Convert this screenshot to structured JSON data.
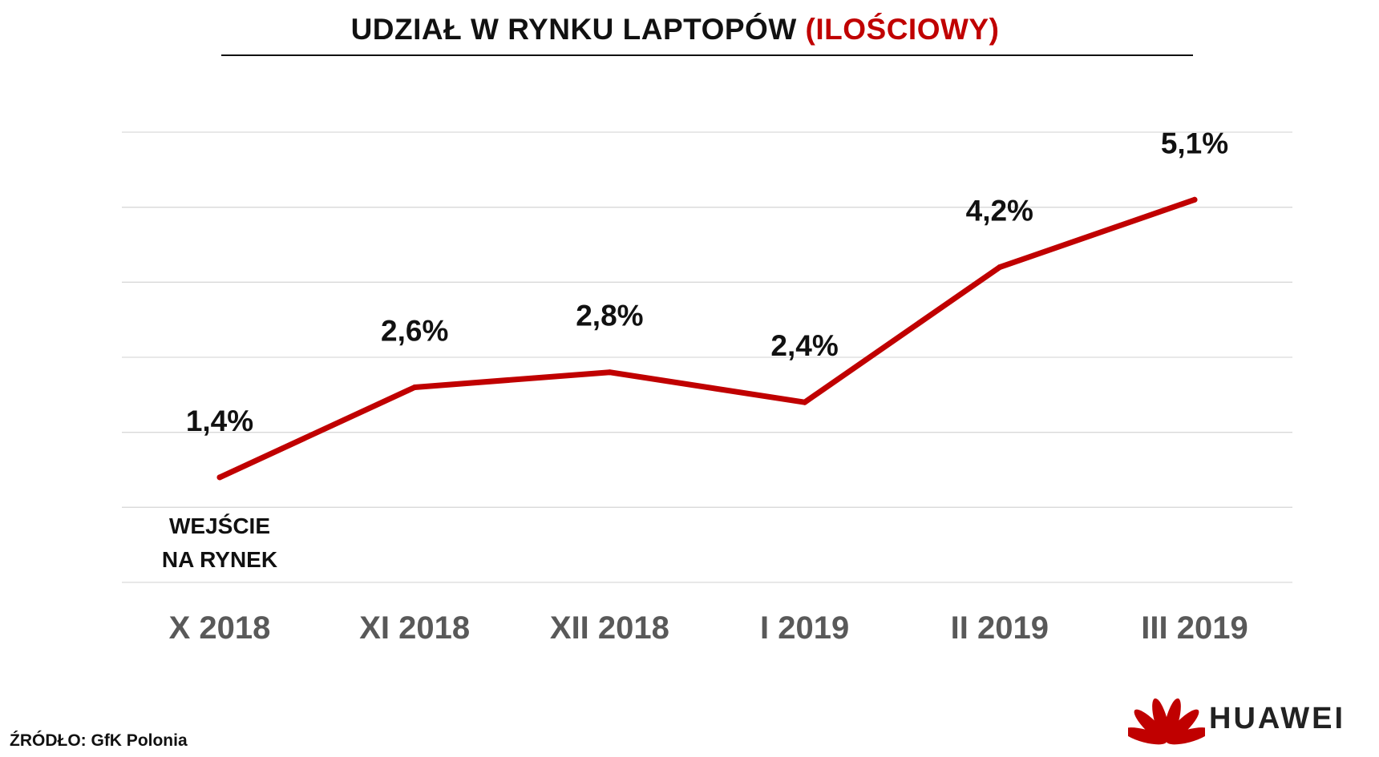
{
  "title": {
    "main": "UDZIAŁ W RYNKU LAPTOPÓW ",
    "accent": "(ILOŚCIOWY)"
  },
  "colors": {
    "accent": "#c00000",
    "line": "#c00000",
    "grid": "#d9d9d9",
    "tick_text": "#595959",
    "text": "#111111"
  },
  "chart_data": {
    "type": "line",
    "title": "UDZIAŁ W RYNKU LAPTOPÓW (ILOŚCIOWY)",
    "categories": [
      "X 2018",
      "XI 2018",
      "XII 2018",
      "I 2019",
      "II 2019",
      "III 2019"
    ],
    "series": [
      {
        "values": [
          1.4,
          2.6,
          2.8,
          2.4,
          4.2,
          5.1
        ],
        "data_labels": [
          "1,4%",
          "2,6%",
          "2,8%",
          "2,4%",
          "4,2%",
          "5,1%"
        ]
      }
    ],
    "ylim": [
      0,
      6
    ],
    "y_gridlines": [
      0,
      1,
      2,
      3,
      4,
      5,
      6
    ],
    "y_tick_labels_shown": false,
    "grid": true,
    "legend": "none",
    "annotations": [
      {
        "category": "X 2018",
        "lines": [
          "WEJŚCIE",
          "NA RYNEK"
        ]
      }
    ]
  },
  "footer": {
    "source": "ŹRÓDŁO: GfK Polonia",
    "brand": "HUAWEI",
    "brand_icon": "huawei-petal-logo"
  }
}
